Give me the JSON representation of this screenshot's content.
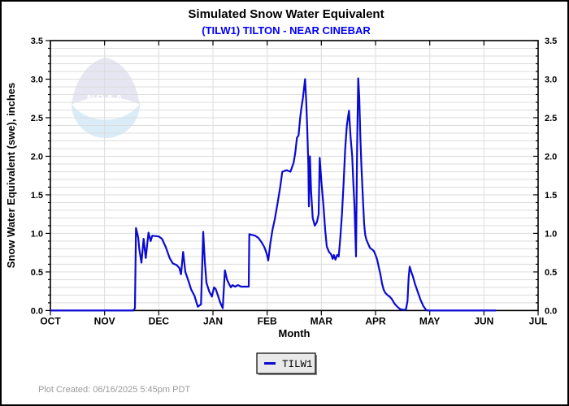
{
  "header": {
    "title": "Simulated Snow Water Equivalent",
    "subtitle": "(TILW1) TILTON - NEAR CINEBAR"
  },
  "watermark": {
    "text": "NOAA"
  },
  "legend": {
    "label": "TILW1"
  },
  "footer": {
    "created": "Plot Created: 06/16/2025 5:45pm PDT"
  },
  "colors": {
    "line": "#0a0ad2",
    "subtitle": "#0000ff",
    "grid": "#dcdcdc",
    "plot_border": "#000000",
    "legend_bg": "#e9e9e9",
    "footer_text": "#9b9b9b",
    "logo_top": "#c9c9e2",
    "logo_bottom": "#b5d9ee"
  },
  "chart_data": {
    "type": "line",
    "title": "Simulated Snow Water Equivalent",
    "subtitle": "(TILW1) TILTON - NEAR CINEBAR",
    "xlabel": "Month",
    "ylabel": "Snow Water Equivalent (swe),  inches",
    "x_tick_labels": [
      "OCT",
      "NOV",
      "DEC",
      "JAN",
      "FEB",
      "MAR",
      "APR",
      "MAY",
      "JUN",
      "JUL"
    ],
    "y_tick_labels": [
      "0.0",
      "0.5",
      "1.0",
      "1.5",
      "2.0",
      "2.5",
      "3.0",
      "3.5"
    ],
    "ylim": [
      0,
      3.5
    ],
    "y_major_step": 0.5,
    "y_minor_step": 0.1,
    "x_months_span": 9,
    "grid": true,
    "y_axis_labeled_both_sides": true,
    "legend_position": "bottom-center",
    "series": [
      {
        "name": "TILW1",
        "color": "#0a0ad2",
        "x_unit": "months_after_oct1",
        "y_unit": "inches_swe",
        "points": [
          [
            0.0,
            0.0
          ],
          [
            1.53,
            0.0
          ],
          [
            1.56,
            0.03
          ],
          [
            1.58,
            1.07
          ],
          [
            1.62,
            0.95
          ],
          [
            1.64,
            0.8
          ],
          [
            1.68,
            0.62
          ],
          [
            1.72,
            0.93
          ],
          [
            1.76,
            0.68
          ],
          [
            1.81,
            1.01
          ],
          [
            1.85,
            0.9
          ],
          [
            1.88,
            0.97
          ],
          [
            2.0,
            0.96
          ],
          [
            2.06,
            0.93
          ],
          [
            2.13,
            0.82
          ],
          [
            2.2,
            0.68
          ],
          [
            2.26,
            0.61
          ],
          [
            2.33,
            0.59
          ],
          [
            2.38,
            0.55
          ],
          [
            2.41,
            0.47
          ],
          [
            2.45,
            0.76
          ],
          [
            2.49,
            0.5
          ],
          [
            2.54,
            0.4
          ],
          [
            2.6,
            0.27
          ],
          [
            2.66,
            0.19
          ],
          [
            2.72,
            0.05
          ],
          [
            2.78,
            0.08
          ],
          [
            2.82,
            1.02
          ],
          [
            2.85,
            0.63
          ],
          [
            2.88,
            0.36
          ],
          [
            2.93,
            0.25
          ],
          [
            2.98,
            0.18
          ],
          [
            3.02,
            0.3
          ],
          [
            3.05,
            0.28
          ],
          [
            3.08,
            0.22
          ],
          [
            3.13,
            0.11
          ],
          [
            3.18,
            0.03
          ],
          [
            3.22,
            0.52
          ],
          [
            3.26,
            0.4
          ],
          [
            3.3,
            0.34
          ],
          [
            3.33,
            0.3
          ],
          [
            3.36,
            0.33
          ],
          [
            3.41,
            0.31
          ],
          [
            3.46,
            0.33
          ],
          [
            3.52,
            0.31
          ],
          [
            3.6,
            0.31
          ],
          [
            3.66,
            0.31
          ],
          [
            3.67,
            0.99
          ],
          [
            3.72,
            0.98
          ],
          [
            3.78,
            0.97
          ],
          [
            3.84,
            0.94
          ],
          [
            3.9,
            0.88
          ],
          [
            3.95,
            0.82
          ],
          [
            3.99,
            0.74
          ],
          [
            4.02,
            0.65
          ],
          [
            4.06,
            0.88
          ],
          [
            4.1,
            1.05
          ],
          [
            4.14,
            1.18
          ],
          [
            4.19,
            1.38
          ],
          [
            4.24,
            1.6
          ],
          [
            4.28,
            1.8
          ],
          [
            4.36,
            1.82
          ],
          [
            4.43,
            1.8
          ],
          [
            4.49,
            1.92
          ],
          [
            4.52,
            2.05
          ],
          [
            4.55,
            2.24
          ],
          [
            4.58,
            2.27
          ],
          [
            4.61,
            2.5
          ],
          [
            4.63,
            2.62
          ],
          [
            4.66,
            2.76
          ],
          [
            4.7,
            3.0
          ],
          [
            4.72,
            2.72
          ],
          [
            4.74,
            2.35
          ],
          [
            4.76,
            1.9
          ],
          [
            4.77,
            1.35
          ],
          [
            4.79,
            2.0
          ],
          [
            4.81,
            1.55
          ],
          [
            4.84,
            1.2
          ],
          [
            4.88,
            1.1
          ],
          [
            4.92,
            1.15
          ],
          [
            4.95,
            1.25
          ],
          [
            4.97,
            1.98
          ],
          [
            5.0,
            1.68
          ],
          [
            5.04,
            1.35
          ],
          [
            5.07,
            1.05
          ],
          [
            5.1,
            0.83
          ],
          [
            5.14,
            0.76
          ],
          [
            5.18,
            0.73
          ],
          [
            5.21,
            0.67
          ],
          [
            5.23,
            0.72
          ],
          [
            5.26,
            0.66
          ],
          [
            5.29,
            0.72
          ],
          [
            5.32,
            0.7
          ],
          [
            5.35,
            0.95
          ],
          [
            5.38,
            1.25
          ],
          [
            5.41,
            1.65
          ],
          [
            5.44,
            2.1
          ],
          [
            5.47,
            2.4
          ],
          [
            5.51,
            2.59
          ],
          [
            5.54,
            2.25
          ],
          [
            5.57,
            2.0
          ],
          [
            5.59,
            1.65
          ],
          [
            5.61,
            1.38
          ],
          [
            5.64,
            0.7
          ],
          [
            5.66,
            2.1
          ],
          [
            5.68,
            3.01
          ],
          [
            5.7,
            2.76
          ],
          [
            5.72,
            2.25
          ],
          [
            5.74,
            1.85
          ],
          [
            5.77,
            1.4
          ],
          [
            5.79,
            1.12
          ],
          [
            5.81,
            0.98
          ],
          [
            5.83,
            0.92
          ],
          [
            5.86,
            0.87
          ],
          [
            5.9,
            0.81
          ],
          [
            5.94,
            0.79
          ],
          [
            5.97,
            0.77
          ],
          [
            6.0,
            0.72
          ],
          [
            6.03,
            0.66
          ],
          [
            6.06,
            0.56
          ],
          [
            6.09,
            0.47
          ],
          [
            6.12,
            0.35
          ],
          [
            6.15,
            0.27
          ],
          [
            6.18,
            0.23
          ],
          [
            6.22,
            0.2
          ],
          [
            6.26,
            0.18
          ],
          [
            6.3,
            0.15
          ],
          [
            6.35,
            0.09
          ],
          [
            6.4,
            0.05
          ],
          [
            6.45,
            0.02
          ],
          [
            6.5,
            0.01
          ],
          [
            6.56,
            0.01
          ],
          [
            6.59,
            0.12
          ],
          [
            6.61,
            0.42
          ],
          [
            6.63,
            0.57
          ],
          [
            6.66,
            0.5
          ],
          [
            6.69,
            0.44
          ],
          [
            6.73,
            0.34
          ],
          [
            6.78,
            0.24
          ],
          [
            6.83,
            0.14
          ],
          [
            6.88,
            0.06
          ],
          [
            6.93,
            0.01
          ],
          [
            6.96,
            0.0
          ],
          [
            8.22,
            0.0
          ]
        ]
      }
    ]
  }
}
